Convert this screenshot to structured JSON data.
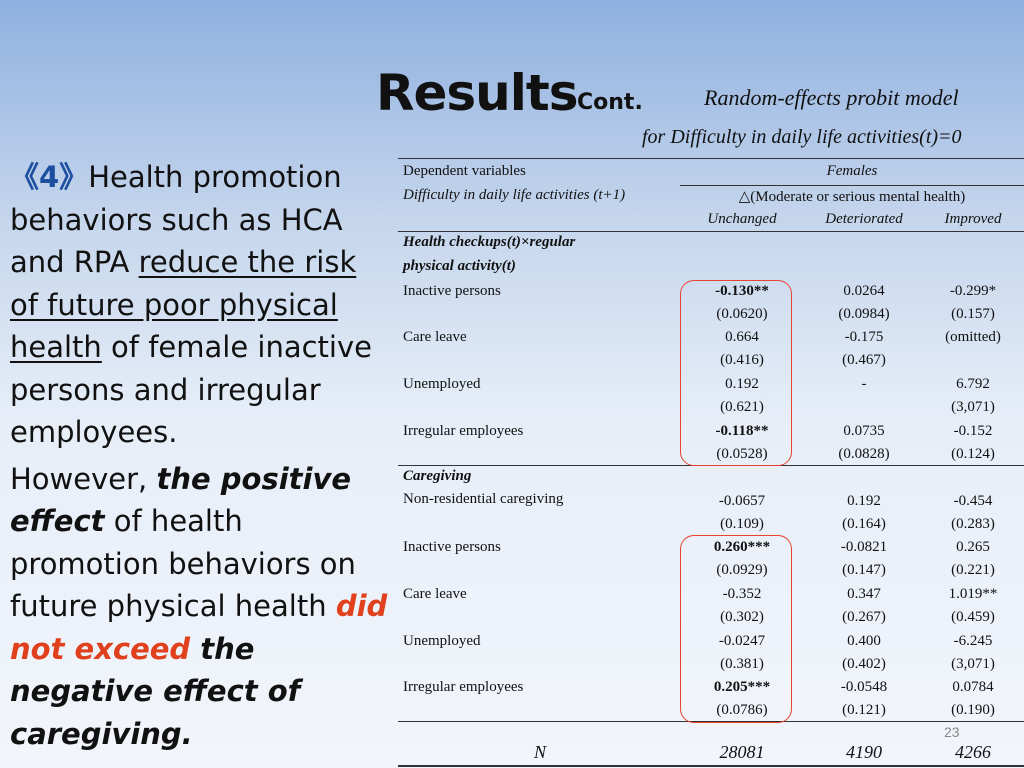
{
  "header": {
    "title": "Results",
    "title_sub": "Cont.",
    "model_line1": "Random-effects probit model",
    "model_line2": "for Difficulty in daily life activities(t)=0"
  },
  "left_text": {
    "number": "《4》",
    "p1_a": "Health promotion behaviors such as HCA and RPA ",
    "p1_u": "reduce the risk of future poor physical health",
    "p1_b": " of female inactive persons and irregular employees.",
    "p2_a": "However, ",
    "p2_bi1": "the positive effect",
    "p2_b": " of health promotion behaviors on future physical health ",
    "p2_red": "did not exceed",
    "p2_bi2": " the negative effect of caregiving."
  },
  "table": {
    "dep_var_label": "Dependent variables",
    "dep_var_value": "Difficulty in daily life activities (t+1)",
    "group": "Females",
    "delta_label": "△(Moderate or serious mental health)",
    "col_heads": [
      "Unchanged",
      "Deteriorated",
      "Improved"
    ],
    "section1": {
      "title_line1": "Health checkups(t)×regular",
      "title_line2": "physical activity(t)",
      "rows": [
        {
          "label": "Inactive persons",
          "vals": [
            "-0.130**",
            "0.0264",
            "-0.299*"
          ],
          "se": [
            "(0.0620)",
            "(0.0984)",
            "(0.157)"
          ]
        },
        {
          "label": "Care leave",
          "vals": [
            "0.664",
            "-0.175",
            "(omitted)"
          ],
          "se": [
            "(0.416)",
            "(0.467)",
            ""
          ]
        },
        {
          "label": "Unemployed",
          "vals": [
            "0.192",
            "-",
            "6.792"
          ],
          "se": [
            "(0.621)",
            "",
            "(3,071)"
          ]
        },
        {
          "label": "Irregular employees",
          "vals": [
            "-0.118**",
            "0.0735",
            "-0.152"
          ],
          "se": [
            "(0.0528)",
            "(0.0828)",
            "(0.124)"
          ]
        }
      ]
    },
    "section2": {
      "title": "Caregiving",
      "rows": [
        {
          "label": "Non-residential caregiving",
          "vals": [
            "-0.0657",
            "0.192",
            "-0.454"
          ],
          "se": [
            "(0.109)",
            "(0.164)",
            "(0.283)"
          ]
        },
        {
          "label": "Inactive persons",
          "vals": [
            "0.260***",
            "-0.0821",
            "0.265"
          ],
          "se": [
            "(0.0929)",
            "(0.147)",
            "(0.221)"
          ]
        },
        {
          "label": "Care leave",
          "vals": [
            "-0.352",
            "0.347",
            "1.019**"
          ],
          "se": [
            "(0.302)",
            "(0.267)",
            "(0.459)"
          ]
        },
        {
          "label": "Unemployed",
          "vals": [
            "-0.0247",
            "0.400",
            "-6.245"
          ],
          "se": [
            "(0.381)",
            "(0.402)",
            "(3,071)"
          ]
        },
        {
          "label": "Irregular employees",
          "vals": [
            "0.205***",
            "-0.0548",
            "0.0784"
          ],
          "se": [
            "(0.0786)",
            "(0.121)",
            "(0.190)"
          ]
        }
      ]
    },
    "n_label": "N",
    "n_vals": [
      "28081",
      "4190",
      "4266"
    ]
  },
  "page_number": "23"
}
